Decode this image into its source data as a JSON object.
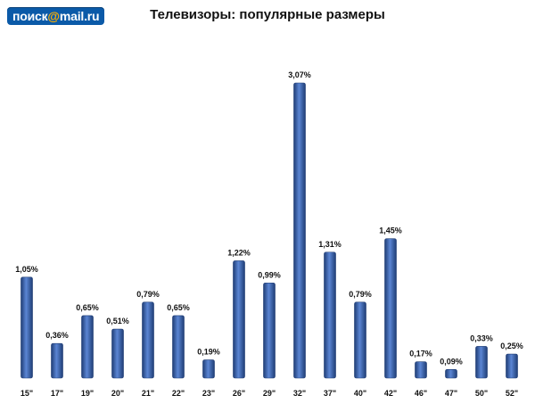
{
  "header": {
    "logo_part1": "поиск",
    "logo_at": "@",
    "logo_part2": "mail.ru",
    "title": "Телевизоры: популярные размеры"
  },
  "colors": {
    "bar": "#2f5597",
    "bar_light": "#5b86d4",
    "bar_dark": "#1f3d75",
    "text": "#111111",
    "axis": "#bbbbbb"
  },
  "chart_data": {
    "type": "bar",
    "title": "Телевизоры: популярные размеры",
    "xlabel": "",
    "ylabel": "",
    "categories": [
      "15\"",
      "17\"",
      "19\"",
      "20\"",
      "21\"",
      "22\"",
      "23\"",
      "26\"",
      "29\"",
      "32\"",
      "37\"",
      "40\"",
      "42\"",
      "46\"",
      "47\"",
      "50\"",
      "52\""
    ],
    "values": [
      1.05,
      0.36,
      0.65,
      0.51,
      0.79,
      0.65,
      0.19,
      1.22,
      0.99,
      3.07,
      1.31,
      0.79,
      1.45,
      0.17,
      0.09,
      0.33,
      0.25
    ],
    "value_labels": [
      "1,05%",
      "0,36%",
      "0,65%",
      "0,51%",
      "0,79%",
      "0,65%",
      "0,19%",
      "1,22%",
      "0,99%",
      "3,07%",
      "1,31%",
      "0,79%",
      "1,45%",
      "0,17%",
      "0,09%",
      "0,33%",
      "0,25%"
    ],
    "ylim": [
      0,
      3.07
    ],
    "grid": false,
    "legend": "none"
  }
}
